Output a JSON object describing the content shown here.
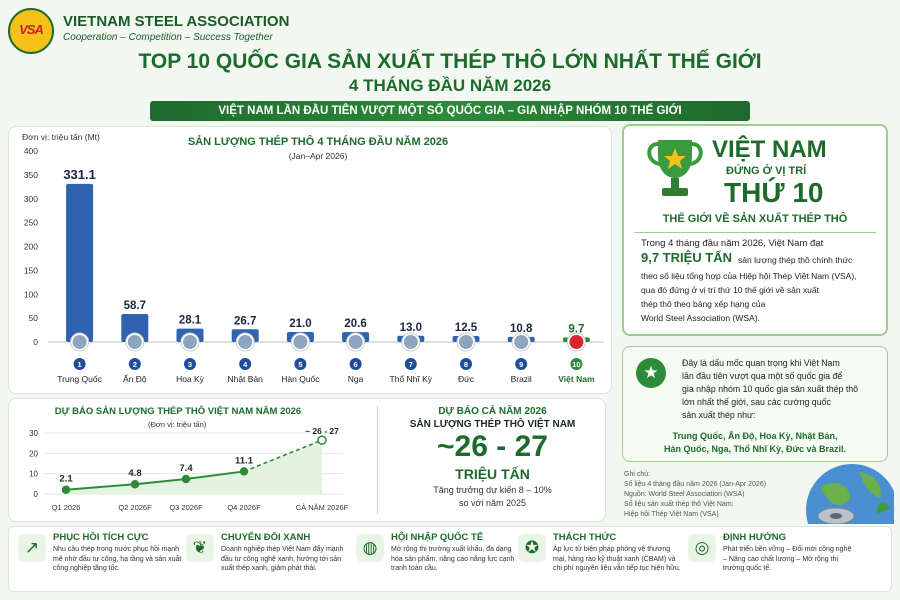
{
  "header": {
    "logo": "VSA",
    "org_name": "VIETNAM STEEL ASSOCIATION",
    "slogan": "Cooperation – Competition – Success Together",
    "title": "TOP 10 QUỐC GIA SẢN XUẤT THÉP THÔ LỚN NHẤT THẾ GIỚI",
    "subtitle": "4 THÁNG ĐẦU NĂM 2026",
    "banner": "VIỆT NAM LẦN ĐẦU TIÊN VƯỢT MỘT SỐ QUỐC GIA – GIA NHẬP NHÓM 10 THẾ GIỚI"
  },
  "colors": {
    "green": "#1d6b2b",
    "blue_bar": "#2f63b0",
    "vn_bar": "#2e8b3a"
  },
  "chart_data": [
    {
      "type": "bar",
      "title": "SẢN LƯỢNG THÉP THÔ 4 THÁNG ĐẦU NĂM 2026",
      "subtitle": "(Jan–Apr 2026)",
      "ylabel": "Đơn vị: triệu tấn (Mt)",
      "ylim": [
        0,
        400
      ],
      "yticks": [
        0,
        50,
        100,
        150,
        200,
        250,
        300,
        350,
        400
      ],
      "categories": [
        "Trung Quốc",
        "Ấn Độ",
        "Hoa Kỳ",
        "Nhật Bản",
        "Hàn Quốc",
        "Nga",
        "Thổ Nhĩ Kỳ",
        "Đức",
        "Brazil",
        "Việt Nam"
      ],
      "ranks": [
        "1",
        "2",
        "3",
        "4",
        "5",
        "6",
        "7",
        "8",
        "9",
        "10"
      ],
      "values": [
        331.1,
        58.7,
        28.1,
        26.7,
        21.0,
        20.6,
        13.0,
        12.5,
        10.8,
        9.7
      ],
      "value_labels": [
        "331.1",
        "58.7",
        "28.1",
        "26.7",
        "21.0",
        "20.6",
        "13.0",
        "12.5",
        "10.8",
        "9.7"
      ],
      "highlight": "Việt Nam",
      "grid": false
    },
    {
      "type": "line",
      "title": "DỰ BÁO SẢN LƯỢNG THÉP THÔ VIỆT NAM NĂM 2026",
      "ylabel": "(Đơn vị: triệu tấn)",
      "ylim": [
        0,
        30
      ],
      "yticks": [
        0,
        10,
        20,
        30
      ],
      "categories": [
        "Q1 2026",
        "Q2 2026F",
        "Q3 2026F",
        "Q4 2026F",
        "CẢ NĂM 2026F"
      ],
      "values": [
        2.1,
        4.8,
        7.4,
        11.1,
        26.5
      ],
      "value_labels": [
        "2.1",
        "4.8",
        "7.4",
        "11.1",
        "~ 26 - 27"
      ],
      "grid": true
    }
  ],
  "forecast": {
    "heading": "DỰ BÁO CẢ NĂM 2026",
    "line1": "SẢN LƯỢNG THÉP THÔ VIỆT NAM",
    "big": "~26 - 27",
    "unit": "TRIỆU TẤN",
    "growth1": "Tăng trưởng dự kiến 8 – 10%",
    "growth2": "so với năm 2025"
  },
  "vn_box": {
    "l1": "VIỆT NAM",
    "l2": "ĐỨNG Ở VỊ TRÍ",
    "l3": "THỨ 10",
    "l4": "THẾ GIỚI VỀ SẢN XUẤT THÉP THÔ",
    "p1": "Trong 4 tháng đầu năm 2026, Việt Nam đạt",
    "p2": "9,7 TRIỆU TẤN",
    "p3": "sản lượng thép thô chính thức",
    "p4": "theo số liệu tổng hợp của Hiệp hội Thép Việt Nam (VSA),",
    "p5": "qua đó đứng ở vị trí thứ 10 thế giới về sản xuất",
    "p6": "thép thô theo bảng xếp hạng của",
    "p7": "World Steel Association (WSA)."
  },
  "note_box": {
    "l1": "Đây là dấu mốc quan trọng khi Việt Nam",
    "l2": "lần đầu tiên vượt qua một số quốc gia để",
    "l3": "gia nhập nhóm 10 quốc gia sản xuất thép thô",
    "l4": "lớn nhất thế giới, sau các cường quốc",
    "l5": "sản xuất thép như:",
    "c1": "Trung Quốc, Ấn Độ, Hoa Kỳ, Nhật Bản,",
    "c2": "Hàn Quốc, Nga, Thổ Nhĩ Kỳ, Đức và Brazil."
  },
  "source_notes": {
    "t": "Ghi chú:",
    "a": "Số liệu 4 tháng đầu năm 2026 (Jan-Apr 2026)",
    "b": "Nguồn: World Steel Association (WSA)",
    "c": "Số liệu sản xuất thép thô Việt Nam:",
    "d": "Hiệp hội Thép Việt Nam (VSA)"
  },
  "bottom": [
    {
      "icon": "chart-growth-icon",
      "title": "PHỤC HỒI TÍCH CỰC",
      "desc": "Nhu cầu thép trong nước phục hồi mạnh mẽ nhờ đầu tư công, hạ tầng và sản xuất công nghiệp tăng tốc."
    },
    {
      "icon": "leaf-icon",
      "title": "CHUYỂN ĐỔI XANH",
      "desc": "Doanh nghiệp thép Việt Nam đẩy mạnh đầu tư công nghệ xanh, hướng tới sản xuất thép xanh, giảm phát thải."
    },
    {
      "icon": "globe-icon",
      "title": "HỘI NHẬP QUỐC TẾ",
      "desc": "Mở rộng thị trường xuất khẩu, đa dạng hóa sản phẩm, nâng cao năng lực cạnh tranh toàn cầu."
    },
    {
      "icon": "shield-icon",
      "title": "THÁCH THỨC",
      "desc": "Áp lực từ biện pháp phòng vệ thương mại, hàng rào kỹ thuật xanh (CBAM) và chi phí nguyên liệu vẫn tiếp tục hiện hữu."
    },
    {
      "icon": "target-icon",
      "title": "ĐỊNH HƯỚNG",
      "desc": "Phát triển bền vững – Đổi mới công nghệ – Nâng cao chất lượng – Mở rộng thị trường quốc tế."
    }
  ]
}
